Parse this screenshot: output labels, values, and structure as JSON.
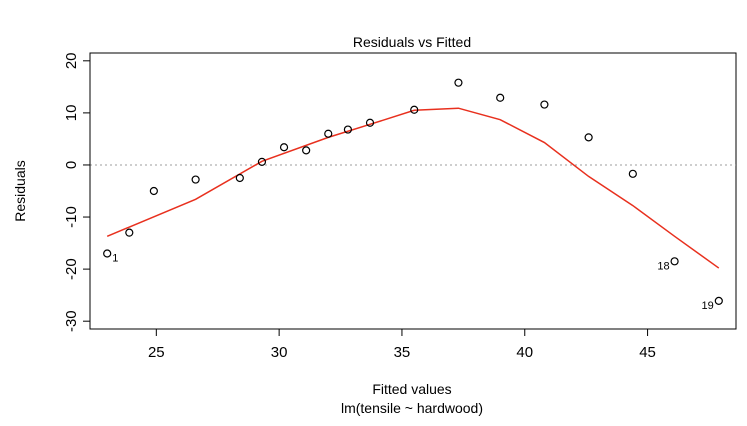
{
  "chart_data": {
    "type": "scatter",
    "title": "Residuals vs Fitted",
    "xlabel": "Fitted values",
    "sublabel": "lm(tensile ~ hardwood)",
    "ylabel": "Residuals",
    "xlim": [
      22.3,
      48.6
    ],
    "ylim": [
      -31.5,
      21.5
    ],
    "x_ticks": [
      25,
      30,
      35,
      40,
      45
    ],
    "y_ticks": [
      -30,
      -20,
      -10,
      0,
      10,
      20
    ],
    "reference_line": {
      "y": 0,
      "style": "dotted",
      "color": "#9e9e9e"
    },
    "points": [
      {
        "x": 23.0,
        "y": -17.0,
        "label": "1"
      },
      {
        "x": 23.9,
        "y": -13.0
      },
      {
        "x": 24.9,
        "y": -5.0
      },
      {
        "x": 26.6,
        "y": -2.8
      },
      {
        "x": 28.4,
        "y": -2.5
      },
      {
        "x": 29.3,
        "y": 0.6
      },
      {
        "x": 30.2,
        "y": 3.4
      },
      {
        "x": 31.1,
        "y": 2.8
      },
      {
        "x": 32.0,
        "y": 6.0
      },
      {
        "x": 32.8,
        "y": 6.8
      },
      {
        "x": 33.7,
        "y": 8.1
      },
      {
        "x": 35.5,
        "y": 10.6
      },
      {
        "x": 37.3,
        "y": 15.8
      },
      {
        "x": 39.0,
        "y": 12.9
      },
      {
        "x": 40.8,
        "y": 11.6
      },
      {
        "x": 42.6,
        "y": 5.3
      },
      {
        "x": 44.4,
        "y": -1.7
      },
      {
        "x": 46.1,
        "y": -18.5,
        "label": "18"
      },
      {
        "x": 47.9,
        "y": -26.1,
        "label": "19"
      }
    ],
    "smooth_line": {
      "color": "#e8301e",
      "points": [
        {
          "x": 23.0,
          "y": -13.7
        },
        {
          "x": 26.6,
          "y": -6.6
        },
        {
          "x": 29.3,
          "y": 0.7
        },
        {
          "x": 32.0,
          "y": 5.3
        },
        {
          "x": 33.7,
          "y": 7.8
        },
        {
          "x": 35.5,
          "y": 10.5
        },
        {
          "x": 37.3,
          "y": 10.9
        },
        {
          "x": 39.0,
          "y": 8.7
        },
        {
          "x": 40.8,
          "y": 4.3
        },
        {
          "x": 42.6,
          "y": -2.2
        },
        {
          "x": 44.4,
          "y": -7.8
        },
        {
          "x": 46.1,
          "y": -13.7
        },
        {
          "x": 47.9,
          "y": -19.8
        }
      ]
    },
    "grid": false,
    "legend": "none"
  }
}
